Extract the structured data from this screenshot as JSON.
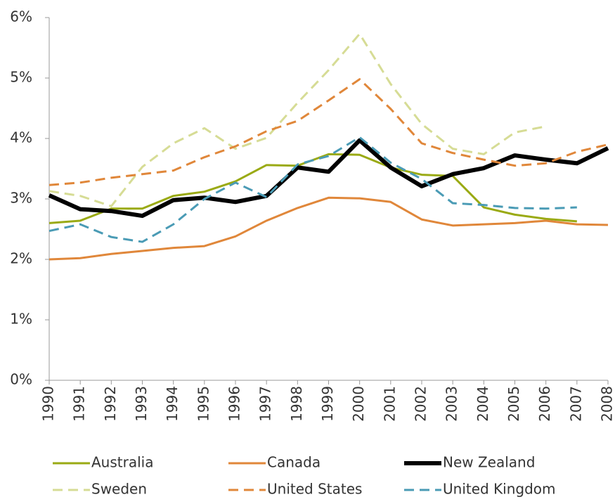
{
  "chart_data": {
    "type": "line",
    "categories": [
      "1990",
      "1991",
      "1992",
      "1993",
      "1994",
      "1995",
      "1996",
      "1997",
      "1998",
      "1999",
      "2000",
      "2001",
      "2002",
      "2003",
      "2004",
      "2005",
      "2006",
      "2007",
      "2008"
    ],
    "ylim": [
      0,
      6
    ],
    "yticks": [
      {
        "value": 0,
        "label": "0%"
      },
      {
        "value": 1,
        "label": "1%"
      },
      {
        "value": 2,
        "label": "2%"
      },
      {
        "value": 3,
        "label": "3%"
      },
      {
        "value": 4,
        "label": "4%"
      },
      {
        "value": 5,
        "label": "5%"
      },
      {
        "value": 6,
        "label": "6%"
      }
    ],
    "grid": false,
    "series": [
      {
        "name": "Australia",
        "color": "#9aaa14",
        "width": 3,
        "dash": false,
        "values": [
          2.6,
          2.64,
          2.84,
          2.84,
          3.05,
          3.12,
          3.29,
          3.56,
          3.55,
          3.74,
          3.73,
          3.52,
          3.4,
          3.38,
          2.86,
          2.74,
          2.67,
          2.63,
          null
        ]
      },
      {
        "name": "Canada",
        "color": "#e0873a",
        "width": 3,
        "dash": false,
        "values": [
          2.0,
          2.02,
          2.09,
          2.14,
          2.19,
          2.22,
          2.38,
          2.64,
          2.85,
          3.02,
          3.01,
          2.95,
          2.66,
          2.56,
          2.58,
          2.6,
          2.64,
          2.58,
          2.57
        ]
      },
      {
        "name": "New Zealand",
        "color": "#000000",
        "width": 6,
        "dash": false,
        "values": [
          3.06,
          2.83,
          2.8,
          2.72,
          2.98,
          3.02,
          2.95,
          3.05,
          3.52,
          3.45,
          3.97,
          3.52,
          3.21,
          3.41,
          3.51,
          3.72,
          3.65,
          3.59,
          3.84
        ]
      },
      {
        "name": "Sweden",
        "color": "#d6dc95",
        "width": 3,
        "dash": true,
        "values": [
          3.13,
          3.05,
          2.88,
          3.53,
          3.92,
          4.17,
          3.83,
          4.01,
          4.59,
          5.13,
          5.73,
          4.9,
          4.24,
          3.83,
          3.74,
          4.1,
          4.2,
          null,
          null
        ]
      },
      {
        "name": "United States",
        "color": "#e0873a",
        "width": 3,
        "dash": true,
        "values": [
          3.23,
          3.27,
          3.35,
          3.41,
          3.47,
          3.69,
          3.87,
          4.12,
          4.29,
          4.63,
          4.98,
          4.49,
          3.92,
          3.76,
          3.65,
          3.55,
          3.59,
          3.78,
          3.9
        ]
      },
      {
        "name": "United Kingdom",
        "color": "#4a9bb5",
        "width": 3,
        "dash": true,
        "values": [
          2.47,
          2.58,
          2.37,
          2.29,
          2.58,
          3.0,
          3.27,
          3.03,
          3.57,
          3.71,
          4.02,
          3.6,
          3.33,
          2.93,
          2.9,
          2.85,
          2.84,
          2.86,
          null
        ]
      }
    ]
  }
}
